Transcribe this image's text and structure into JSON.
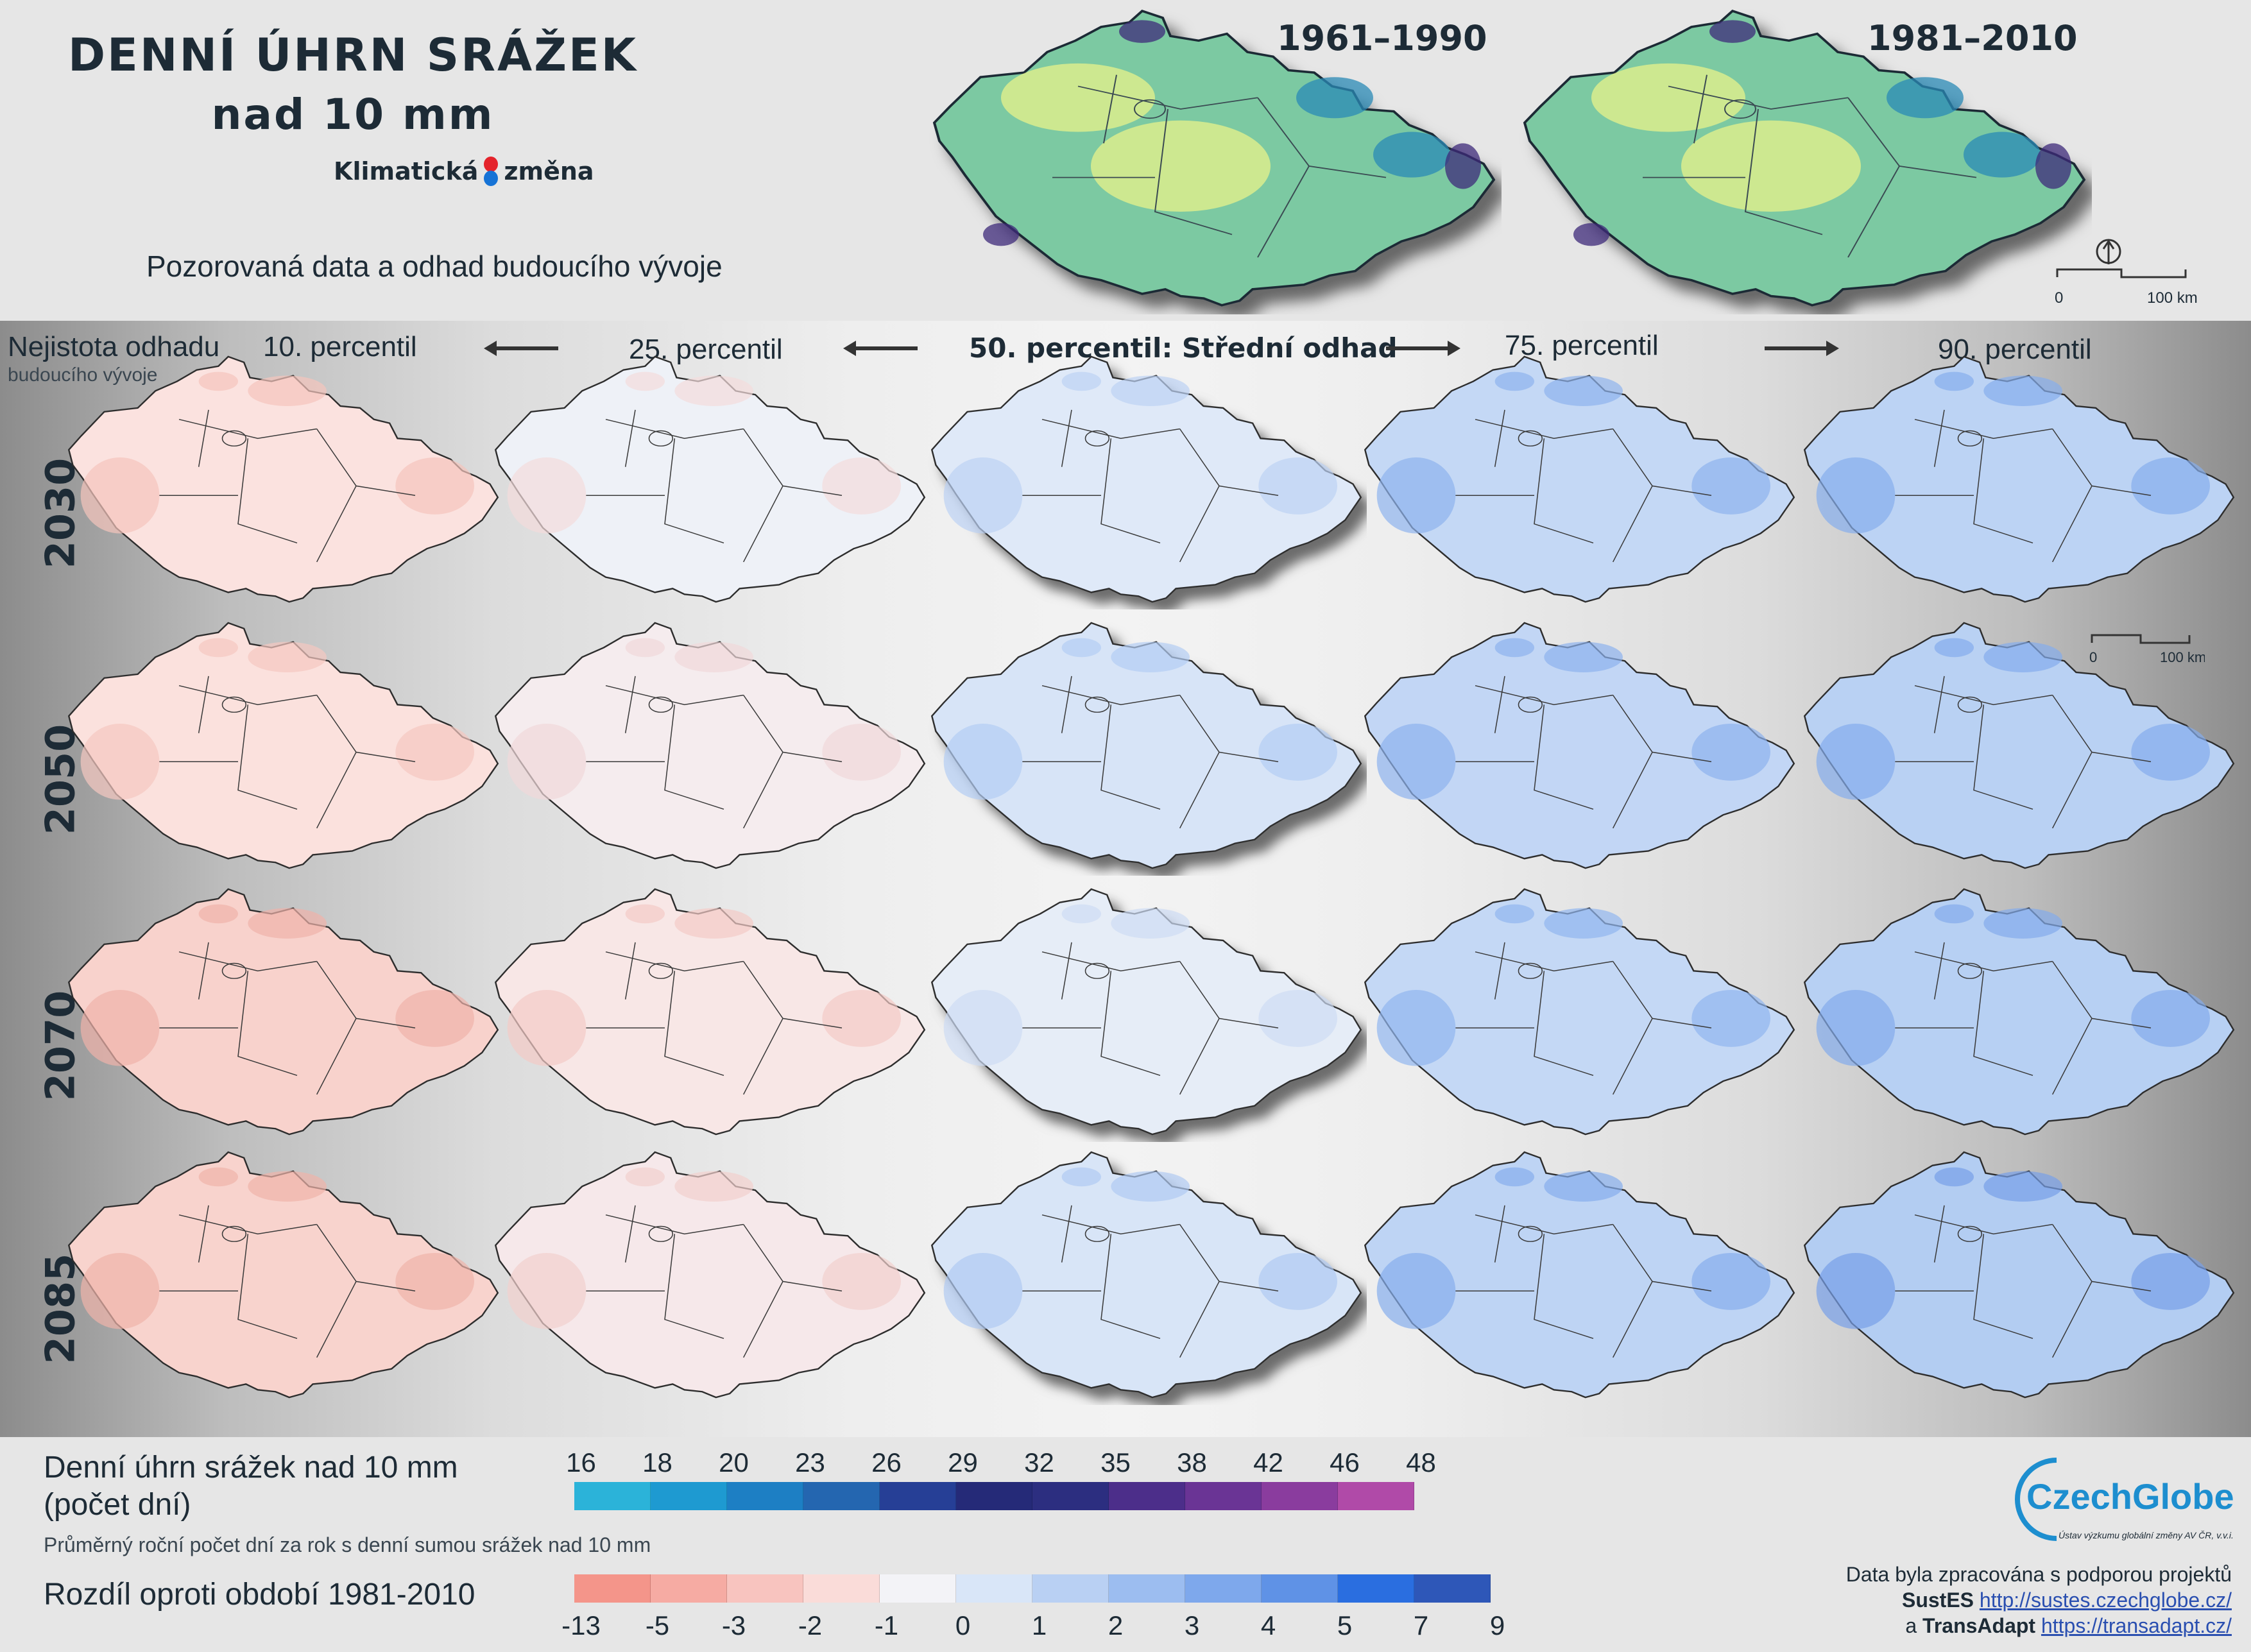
{
  "header": {
    "title_line1": "DENNÍ ÚHRN SRÁŽEK",
    "title_line2": "nad 10 mm",
    "brand_left": "Klimatická",
    "brand_right": "změna",
    "subtitle": "Pozorovaná data a odhad budoucího vývoje",
    "period1": "1961–1990",
    "period2": "1981–2010",
    "scale_zero": "0",
    "scale_max": "100 km"
  },
  "grid": {
    "uncertainty_line1": "Nejistota odhadu",
    "uncertainty_line2": "budoucího vývoje",
    "columns": [
      "10. percentil",
      "25. percentil",
      "50. percentil: Střední odhad",
      "75. percentil",
      "90. percentil"
    ],
    "years": [
      "2030",
      "2050",
      "2070",
      "2085"
    ],
    "scale_zero": "0",
    "scale_max": "100 km",
    "map_fill_colors": [
      [
        "#fbe2df",
        "#eef1f7",
        "#dfe9f8",
        "#c4d8f5",
        "#bcd3f4"
      ],
      [
        "#fbe1dd",
        "#f5ecee",
        "#d7e4f7",
        "#c2d6f5",
        "#b9d1f3"
      ],
      [
        "#f8d2cc",
        "#f8e7e6",
        "#e6edf7",
        "#c4d8f5",
        "#b7d0f3"
      ],
      [
        "#f8d3cd",
        "#f6e8ea",
        "#d8e5f7",
        "#bed4f4",
        "#b3cdf2"
      ]
    ],
    "map_accent_colors": [
      [
        "#f5c4bc",
        "#f4dcdc",
        "#bcd2f4",
        "#8fb4ee",
        "#86aeec"
      ],
      [
        "#f5c8c1",
        "#f1d8da",
        "#b3cdf3",
        "#8db2ee",
        "#84acec"
      ],
      [
        "#f0b2a9",
        "#f3cbc6",
        "#cddcf3",
        "#92b7ef",
        "#83abeb"
      ],
      [
        "#f0b4aa",
        "#f2d0cd",
        "#b1caf2",
        "#86aeec",
        "#789fe8"
      ]
    ]
  },
  "observed_maps": {
    "fill_color": "#7cc9a2",
    "accent_colors": [
      "#e8f28a",
      "#2a8ab5",
      "#3d2a7a"
    ]
  },
  "legend": {
    "precip_title_line1": "Denní úhrn srážek nad 10 mm",
    "precip_title_line2": "(počet dní)",
    "precip_note": "Průměrný roční počet dní za rok s denní sumou srážek nad 10 mm",
    "precip_ticks": [
      "16",
      "18",
      "20",
      "23",
      "26",
      "29",
      "32",
      "35",
      "38",
      "42",
      "46",
      "48"
    ],
    "precip_colors": [
      "#2bb3d9",
      "#1e9ad1",
      "#1d7fc4",
      "#2466b0",
      "#263f96",
      "#252a78",
      "#2c2e80",
      "#4c2e8a",
      "#6a3495",
      "#8a3c9e",
      "#b04aa8"
    ],
    "diff_title": "Rozdíl oproti období 1981-2010",
    "diff_ticks": [
      "-13",
      "-5",
      "-3",
      "-2",
      "-1",
      "0",
      "1",
      "2",
      "3",
      "4",
      "5",
      "7",
      "9"
    ],
    "diff_colors": [
      "#f4958a",
      "#f6aba3",
      "#f8c4bf",
      "#fadcd9",
      "#f3f3f7",
      "#d9e6f8",
      "#b9d0f3",
      "#9cbdf0",
      "#7ea8ec",
      "#5f92e6",
      "#2a6ee0",
      "#2e57b8"
    ]
  },
  "credits": {
    "logo_name": "CzechGlobe",
    "logo_sub": "Ústav výzkumu globální změny AV ČR, v.v.i.",
    "line1": "Data byla zpracována s podporou projektů",
    "project1_name": "SustES",
    "project1_url": "http://sustes.czechglobe.cz/",
    "and": "a",
    "project2_name": "TransAdapt",
    "project2_url": "https://transadapt.cz/"
  }
}
